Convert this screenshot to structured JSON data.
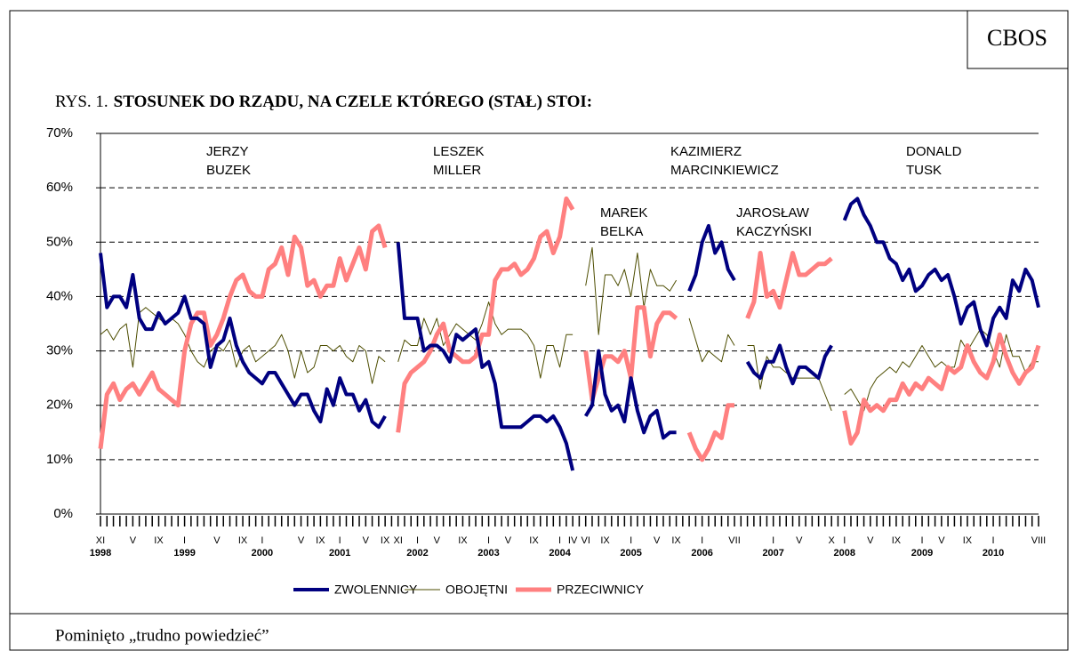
{
  "badge": "CBOS",
  "footnote": "Pominięto „trudno powiedzieć”",
  "chart_data": {
    "type": "line",
    "figure_label": "RYS. 1.",
    "title": "STOSUNEK DO RZĄDU, NA CZELE KTÓREGO (STAŁ) STOI:",
    "annotations": [
      [
        "JERZY",
        "BUZEK"
      ],
      [
        "LESZEK",
        "MILLER"
      ],
      [
        "MAREK",
        "BELKA"
      ],
      [
        "KAZIMIERZ",
        "MARCINKIEWICZ"
      ],
      [
        "JAROSŁAW",
        "KACZYŃSKI"
      ],
      [
        "DONALD",
        "TUSK"
      ]
    ],
    "ylim": [
      0,
      70
    ],
    "yticks": [
      {
        "value": 0,
        "label": "0%"
      },
      {
        "value": 10,
        "label": "10%"
      },
      {
        "value": 20,
        "label": "20%"
      },
      {
        "value": 30,
        "label": "30%"
      },
      {
        "value": 40,
        "label": "40%"
      },
      {
        "value": 50,
        "label": "50%"
      },
      {
        "value": 60,
        "label": "60%"
      },
      {
        "value": 70,
        "label": "70%"
      }
    ],
    "grid": true,
    "years": [
      "1998",
      "1999",
      "2000",
      "2001",
      "2002",
      "2003",
      "2004",
      "2005",
      "2006",
      "2007",
      "2008",
      "2009",
      "2010"
    ],
    "categories": [
      "XI",
      null,
      null,
      null,
      null,
      "V",
      null,
      null,
      null,
      "IX",
      null,
      null,
      null,
      "I",
      null,
      null,
      null,
      null,
      "V",
      null,
      null,
      null,
      "IX",
      null,
      null,
      "I",
      null,
      null,
      null,
      null,
      null,
      "V",
      null,
      null,
      "IX",
      null,
      null,
      "I",
      null,
      null,
      null,
      "V",
      null,
      null,
      "IX",
      null,
      "XI",
      null,
      null,
      "I",
      null,
      null,
      "V",
      null,
      null,
      null,
      "IX",
      null,
      null,
      null,
      "I",
      null,
      null,
      "V",
      null,
      null,
      null,
      "IX",
      null,
      null,
      null,
      "I",
      null,
      "IV",
      null,
      "VI",
      null,
      null,
      "IX",
      null,
      null,
      null,
      "I",
      null,
      null,
      null,
      "V",
      null,
      null,
      "IX",
      null,
      null,
      null,
      "I",
      null,
      null,
      null,
      null,
      "VII",
      null,
      null,
      null,
      null,
      null,
      "I",
      null,
      null,
      null,
      "V",
      null,
      null,
      null,
      null,
      "X",
      null,
      "I",
      null,
      null,
      null,
      "V",
      null,
      null,
      null,
      "IX",
      null,
      null,
      null,
      "I",
      null,
      null,
      "V",
      null,
      null,
      null,
      "IX",
      null,
      null,
      null,
      "I",
      null,
      null,
      null,
      null,
      null,
      null,
      "VIII"
    ],
    "series": [
      {
        "name": "ZWOLENNICY",
        "color": "#000080",
        "width": 4,
        "values": [
          48,
          38,
          40,
          40,
          38,
          44,
          36,
          34,
          34,
          37,
          35,
          36,
          37,
          40,
          36,
          36,
          35,
          27,
          31,
          32,
          36,
          31,
          28,
          26,
          25,
          24,
          26,
          26,
          24,
          22,
          20,
          22,
          22,
          19,
          17,
          23,
          20,
          25,
          22,
          22,
          19,
          21,
          17,
          16,
          18,
          null,
          50,
          36,
          36,
          36,
          30,
          31,
          31,
          30,
          28,
          33,
          32,
          33,
          34,
          27,
          28,
          24,
          16,
          16,
          16,
          16,
          17,
          18,
          18,
          17,
          18,
          16,
          13,
          8,
          null,
          18,
          20,
          30,
          22,
          19,
          20,
          17,
          25,
          19,
          15,
          18,
          19,
          14,
          15,
          15,
          null,
          41,
          44,
          50,
          53,
          48,
          50,
          45,
          43,
          null,
          28,
          26,
          25,
          28,
          28,
          31,
          27,
          24,
          27,
          27,
          26,
          25,
          29,
          31,
          null,
          54,
          57,
          58,
          55,
          53,
          50,
          50,
          47,
          46,
          43,
          45,
          41,
          42,
          44,
          45,
          43,
          44,
          40,
          35,
          38,
          39,
          34,
          31,
          36,
          38,
          36,
          43,
          41,
          45,
          43,
          38
        ]
      },
      {
        "name": "OBOJĘTNI",
        "color": "#4d4d00",
        "width": 1,
        "values": [
          33,
          34,
          32,
          34,
          35,
          27,
          37,
          38,
          37,
          36,
          35,
          36,
          35,
          33,
          30,
          28,
          27,
          30,
          31,
          30,
          32,
          27,
          30,
          31,
          28,
          29,
          30,
          31,
          33,
          30,
          25,
          30,
          26,
          27,
          31,
          31,
          30,
          31,
          29,
          28,
          31,
          30,
          24,
          29,
          28,
          null,
          28,
          32,
          31,
          31,
          36,
          33,
          36,
          31,
          33,
          35,
          34,
          33,
          32,
          35,
          39,
          35,
          33,
          34,
          34,
          34,
          33,
          31,
          25,
          31,
          31,
          27,
          33,
          33,
          null,
          42,
          49,
          33,
          44,
          44,
          42,
          45,
          40,
          48,
          38,
          45,
          42,
          42,
          41,
          43,
          null,
          36,
          32,
          28,
          30,
          29,
          28,
          33,
          31,
          null,
          31,
          31,
          23,
          29,
          27,
          27,
          26,
          25,
          25,
          25,
          25,
          25,
          22,
          19,
          null,
          22,
          23,
          21,
          19,
          23,
          25,
          26,
          27,
          26,
          28,
          27,
          29,
          31,
          29,
          27,
          28,
          27,
          27,
          32,
          30,
          32,
          34,
          33,
          30,
          27,
          33,
          29,
          29,
          26,
          28,
          28
        ]
      },
      {
        "name": "PRZECIWNICY",
        "color": "#ff8080",
        "width": 5,
        "values": [
          12,
          22,
          24,
          21,
          23,
          24,
          22,
          24,
          26,
          23,
          22,
          21,
          20,
          30,
          35,
          37,
          37,
          31,
          33,
          36,
          40,
          43,
          44,
          41,
          40,
          40,
          45,
          46,
          49,
          44,
          51,
          49,
          42,
          43,
          40,
          42,
          42,
          47,
          43,
          46,
          49,
          45,
          52,
          53,
          49,
          null,
          15,
          24,
          26,
          27,
          28,
          30,
          33,
          35,
          30,
          29,
          28,
          28,
          29,
          33,
          33,
          43,
          45,
          45,
          46,
          44,
          45,
          47,
          51,
          52,
          48,
          51,
          58,
          56,
          null,
          30,
          21,
          25,
          29,
          29,
          28,
          30,
          25,
          38,
          38,
          29,
          35,
          37,
          37,
          36,
          null,
          15,
          12,
          10,
          12,
          15,
          14,
          20,
          20,
          null,
          36,
          39,
          48,
          40,
          41,
          38,
          43,
          48,
          44,
          44,
          45,
          46,
          46,
          47,
          null,
          19,
          13,
          15,
          21,
          19,
          20,
          19,
          21,
          21,
          24,
          22,
          24,
          23,
          25,
          24,
          23,
          27,
          26,
          27,
          31,
          28,
          26,
          25,
          28,
          33,
          29,
          26,
          24,
          26,
          27,
          31
        ]
      }
    ]
  }
}
